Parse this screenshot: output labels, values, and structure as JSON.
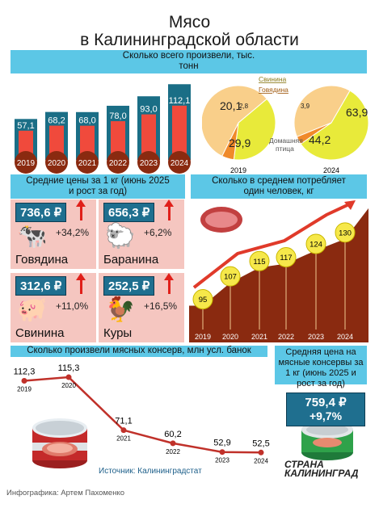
{
  "header": {
    "title1": "Мясо",
    "title2": "в Калининградской области"
  },
  "sections": {
    "production": "Сколько всего произвели, тыс. тонн",
    "prices": "Средние цены за 1 кг (июнь 2025 и рост за год)",
    "consumption": "Сколько в среднем потребляет один человек, кг",
    "canned": "Сколько произвели мясных консерв, млн усл. банок",
    "canned_price": "Средняя цена на мясные консервы за 1 кг (июнь 2025 и рост за год)"
  },
  "chart_data": [
    {
      "type": "bar",
      "categories": [
        "2019",
        "2020",
        "2021",
        "2022",
        "2023",
        "2024"
      ],
      "values": [
        57.1,
        68.2,
        68.0,
        78.0,
        93.0,
        112.1
      ],
      "value_labels": [
        "57,1",
        "68,2",
        "68,0",
        "78,0",
        "93,0",
        "112,1"
      ]
    },
    {
      "type": "pie",
      "groups": [
        {
          "year": "2019",
          "labels": [
            "Свинина",
            "Говядина",
            "Домашняя птица"
          ],
          "values": [
            20.1,
            2.8,
            29.9
          ],
          "value_labels": [
            "20,1",
            "2,8",
            "29,9"
          ]
        },
        {
          "year": "2024",
          "labels": [
            "Свинина",
            "Говядина",
            "Домашняя птица"
          ],
          "values": [
            63.9,
            3.9,
            44.2
          ],
          "value_labels": [
            "63,9",
            "3,9",
            "44,2"
          ]
        }
      ],
      "legend": [
        "Свинина",
        "Говядина",
        "Домашняя птица"
      ],
      "colors": [
        "#e8ea3a",
        "#f08a2a",
        "#f9cf8a"
      ]
    },
    {
      "type": "table",
      "title": "Средние цены за 1 кг",
      "items": [
        {
          "name": "Говядина",
          "price": "736,6 ₽",
          "growth": "+34,2%"
        },
        {
          "name": "Баранина",
          "price": "656,3 ₽",
          "growth": "+6,2%"
        },
        {
          "name": "Свинина",
          "price": "312,6 ₽",
          "growth": "+11,0%"
        },
        {
          "name": "Куры",
          "price": "252,5 ₽",
          "growth": "+16,5%"
        }
      ]
    },
    {
      "type": "area",
      "categories": [
        "2019",
        "2020",
        "2021",
        "2022",
        "2023",
        "2024"
      ],
      "values": [
        95,
        107,
        115,
        117,
        124,
        130
      ],
      "value_labels": [
        "95",
        "107",
        "115",
        "117",
        "124",
        "130"
      ]
    },
    {
      "type": "line",
      "categories": [
        "2019",
        "2020",
        "2021",
        "2022",
        "2023",
        "2024"
      ],
      "values": [
        112.3,
        115.3,
        71.1,
        60.2,
        52.9,
        52.5
      ],
      "value_labels": [
        "112,3",
        "115,3",
        "71,1",
        "60,2",
        "52,9",
        "52,5"
      ]
    }
  ],
  "canned_price": {
    "price": "759,4 ₽",
    "growth": "+9,7%"
  },
  "source": "Источник: Калининградстат",
  "brand": {
    "line1": "СТРАНА",
    "line2": "КАЛИНИНГРАД"
  },
  "credit": "Инфографика: Артем Пахоменко",
  "colors": {
    "band": "#5cc7e6",
    "bar_outer": "#1a6e86",
    "bar_inner": "#f04a3c",
    "year_dot": "#8a2a10",
    "area": "#8a2a10",
    "trend": "#e03a2a",
    "yellow": "#f6e84a"
  }
}
